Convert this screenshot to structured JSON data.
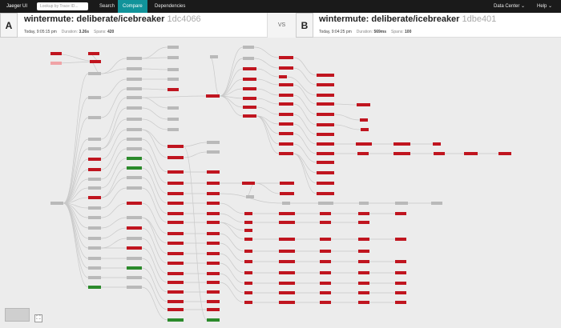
{
  "nav": {
    "brand": "Jaeger UI",
    "lookup_placeholder": "Lookup by Trace ID...",
    "menu": [
      "Search",
      "Compare",
      "Dependencies"
    ],
    "active_menu": "Compare",
    "data_center": "Data Center",
    "help": "Help",
    "caret": "⌄"
  },
  "trace_a": {
    "tag": "A",
    "title": "wintermute: deliberate/icebreaker",
    "trace_id": "1dc4066",
    "date": "Today, 9:05:15 pm",
    "duration_label": "Duration:",
    "duration": "3.26s",
    "spans_label": "Spans:",
    "spans": "420"
  },
  "trace_b": {
    "tag": "B",
    "title": "wintermute: deliberate/icebreaker",
    "trace_id": "1dbe401",
    "date": "Today, 9:04:25 pm",
    "duration_label": "Duration:",
    "duration": "569ms",
    "spans_label": "Spans:",
    "spans": "100"
  },
  "vs_label": "VS",
  "fit_icon": "⛶",
  "colors": {
    "shared": "#b9b9b9",
    "only_a": "#c0151f",
    "only_b": "#2b8a2b",
    "changed": "#f0a3a6",
    "edge": "#c9c9c9"
  }
}
